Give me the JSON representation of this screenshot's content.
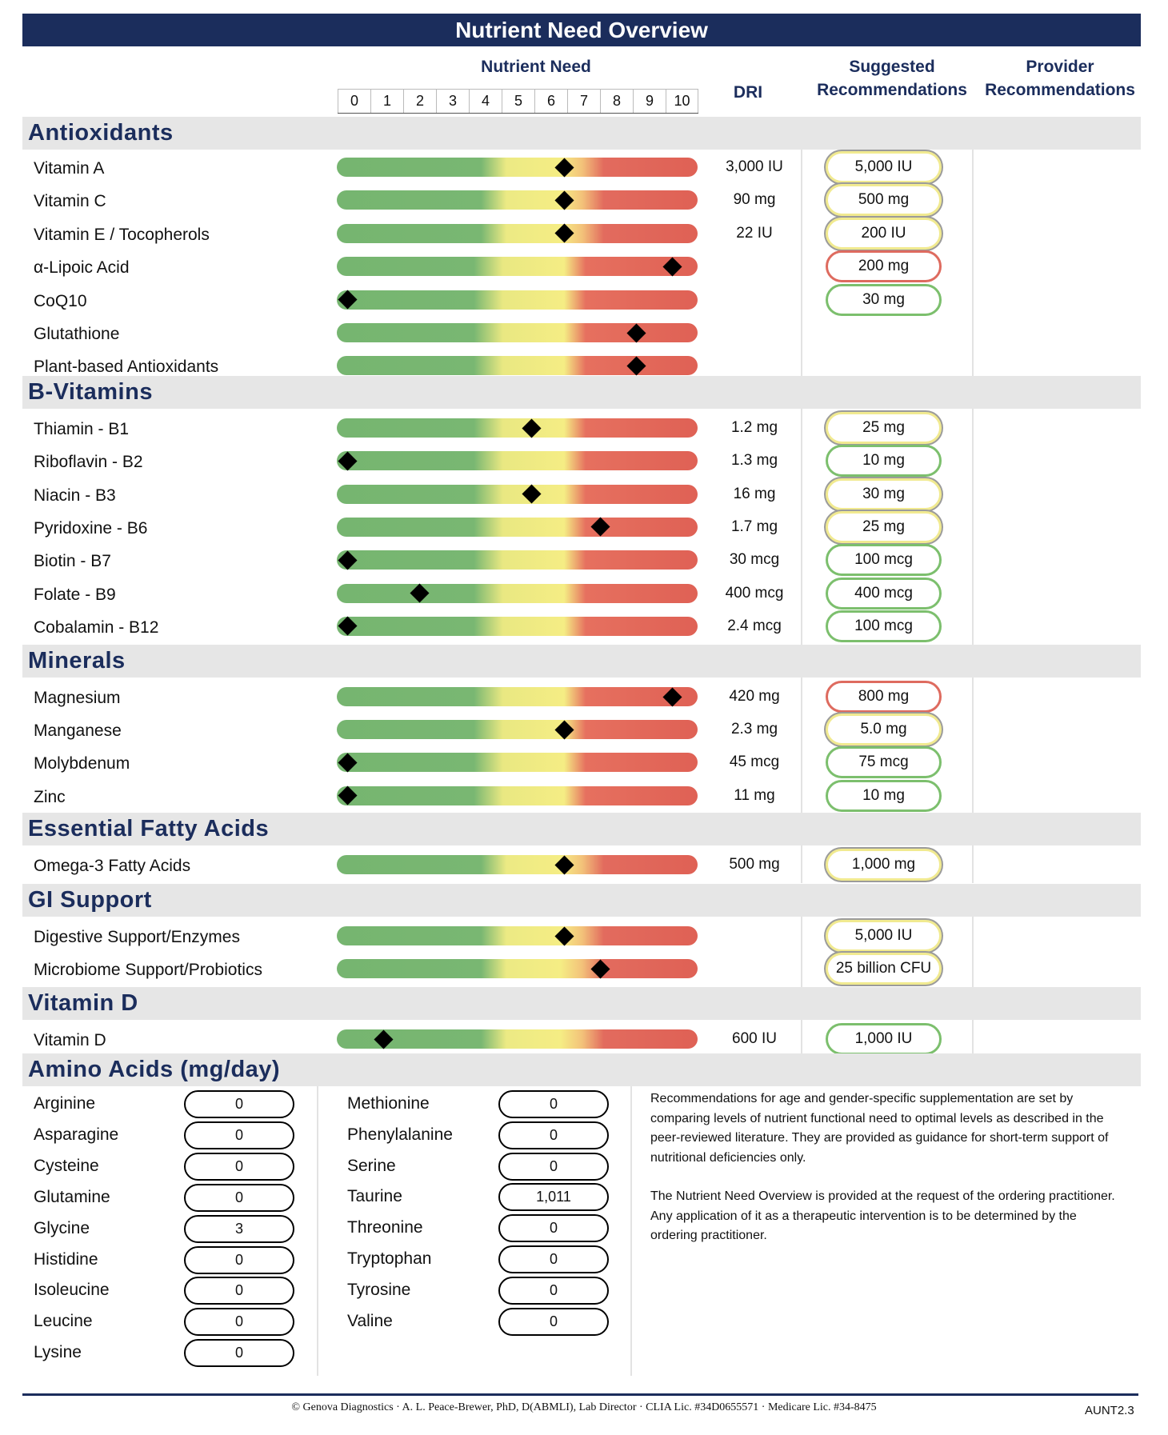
{
  "title": "Nutrient Need Overview",
  "header": {
    "nutrient_need": "Nutrient Need",
    "dri": "DRI",
    "suggested": "Suggested Recommendations",
    "provider": "Provider Recommendations",
    "scale": [
      "0",
      "1",
      "2",
      "3",
      "4",
      "5",
      "6",
      "7",
      "8",
      "9",
      "10"
    ]
  },
  "sections": [
    {
      "name": "Antioxidants",
      "items": [
        {
          "name": "Vitamin A",
          "score": 6.3,
          "dri": "3,000 IU",
          "rec": "5,000 IU",
          "rec_color": "yellow"
        },
        {
          "name": "Vitamin C",
          "score": 6.3,
          "dri": "90 mg",
          "rec": "500 mg",
          "rec_color": "yellow"
        },
        {
          "name": "Vitamin E / Tocopherols",
          "score": 6.3,
          "dri": "22 IU",
          "rec": "200 IU",
          "rec_color": "yellow"
        },
        {
          "name": "α-Lipoic Acid",
          "score": 9.3,
          "dri": "",
          "rec": "200 mg",
          "rec_color": "red"
        },
        {
          "name": "CoQ10",
          "score": 0.3,
          "dri": "",
          "rec": "30 mg",
          "rec_color": "green"
        },
        {
          "name": "Glutathione",
          "score": 8.3,
          "dri": "",
          "rec": "",
          "rec_color": ""
        },
        {
          "name": "Plant-based Antioxidants",
          "score": 8.3,
          "dri": "",
          "rec": "",
          "rec_color": ""
        }
      ]
    },
    {
      "name": "B-Vitamins",
      "items": [
        {
          "name": "Thiamin - B1",
          "score": 5.4,
          "dri": "1.2 mg",
          "rec": "25 mg",
          "rec_color": "yellow"
        },
        {
          "name": "Riboflavin - B2",
          "score": 0.3,
          "dri": "1.3 mg",
          "rec": "10 mg",
          "rec_color": "green"
        },
        {
          "name": "Niacin - B3",
          "score": 5.4,
          "dri": "16 mg",
          "rec": "30 mg",
          "rec_color": "yellow"
        },
        {
          "name": "Pyridoxine - B6",
          "score": 7.3,
          "dri": "1.7 mg",
          "rec": "25 mg",
          "rec_color": "yellow"
        },
        {
          "name": "Biotin - B7",
          "score": 0.3,
          "dri": "30 mcg",
          "rec": "100 mcg",
          "rec_color": "green"
        },
        {
          "name": "Folate - B9",
          "score": 2.3,
          "dri": "400 mcg",
          "rec": "400 mcg",
          "rec_color": "green"
        },
        {
          "name": "Cobalamin - B12",
          "score": 0.3,
          "dri": "2.4 mcg",
          "rec": "100 mcg",
          "rec_color": "green"
        }
      ]
    },
    {
      "name": "Minerals",
      "items": [
        {
          "name": "Magnesium",
          "score": 9.3,
          "dri": "420 mg",
          "rec": "800 mg",
          "rec_color": "red"
        },
        {
          "name": "Manganese",
          "score": 6.3,
          "dri": "2.3 mg",
          "rec": "5.0 mg",
          "rec_color": "yellow"
        },
        {
          "name": "Molybdenum",
          "score": 0.3,
          "dri": "45 mcg",
          "rec": "75 mcg",
          "rec_color": "green"
        },
        {
          "name": "Zinc",
          "score": 0.3,
          "dri": "11 mg",
          "rec": "10 mg",
          "rec_color": "green"
        }
      ]
    },
    {
      "name": "Essential Fatty Acids",
      "items": [
        {
          "name": "Omega-3 Fatty Acids",
          "score": 6.3,
          "dri": "500 mg",
          "rec": "1,000 mg",
          "rec_color": "yellow"
        }
      ]
    },
    {
      "name": "GI Support",
      "items": [
        {
          "name": "Digestive Support/Enzymes",
          "score": 6.3,
          "dri": "",
          "rec": "5,000 IU",
          "rec_color": "yellow"
        },
        {
          "name": "Microbiome Support/Probiotics",
          "score": 7.3,
          "dri": "",
          "rec": "25 billion CFU",
          "rec_color": "yellow"
        }
      ]
    },
    {
      "name": "Vitamin D",
      "items": [
        {
          "name": "Vitamin D",
          "score": 1.3,
          "dri": "600 IU",
          "rec": "1,000 IU",
          "rec_color": "green"
        }
      ]
    }
  ],
  "amino": {
    "title": "Amino Acids (mg/day)",
    "col1": [
      {
        "name": "Arginine",
        "value": "0"
      },
      {
        "name": "Asparagine",
        "value": "0"
      },
      {
        "name": "Cysteine",
        "value": "0"
      },
      {
        "name": "Glutamine",
        "value": "0"
      },
      {
        "name": "Glycine",
        "value": "3"
      },
      {
        "name": "Histidine",
        "value": "0"
      },
      {
        "name": "Isoleucine",
        "value": "0"
      },
      {
        "name": "Leucine",
        "value": "0"
      },
      {
        "name": "Lysine",
        "value": "0"
      }
    ],
    "col2": [
      {
        "name": "Methionine",
        "value": "0"
      },
      {
        "name": "Phenylalanine",
        "value": "0"
      },
      {
        "name": "Serine",
        "value": "0"
      },
      {
        "name": "Taurine",
        "value": "1,011"
      },
      {
        "name": "Threonine",
        "value": "0"
      },
      {
        "name": "Tryptophan",
        "value": "0"
      },
      {
        "name": "Tyrosine",
        "value": "0"
      },
      {
        "name": "Valine",
        "value": "0"
      }
    ]
  },
  "disclaimer": [
    "Recommendations for age and gender-specific supplementation are set by comparing levels of nutrient functional need to optimal levels as described in the peer-reviewed literature. They are provided as guidance for short-term support of nutritional deficiencies only.",
    "The Nutrient Need Overview is provided at the request of the ordering practitioner. Any application of it as a therapeutic intervention is to be determined by the ordering practitioner."
  ],
  "footer": "© Genova Diagnostics · A. L. Peace-Brewer, PhD, D(ABMLI), Lab Director · CLIA Lic. #34D0655571 · Medicare Lic. #34-8475",
  "code": "AUNT2.3",
  "colors": {
    "navy": "#1b2d5c",
    "green": "#7cbf6d",
    "yellow": "#f1ea90",
    "red": "#de6b5f"
  }
}
